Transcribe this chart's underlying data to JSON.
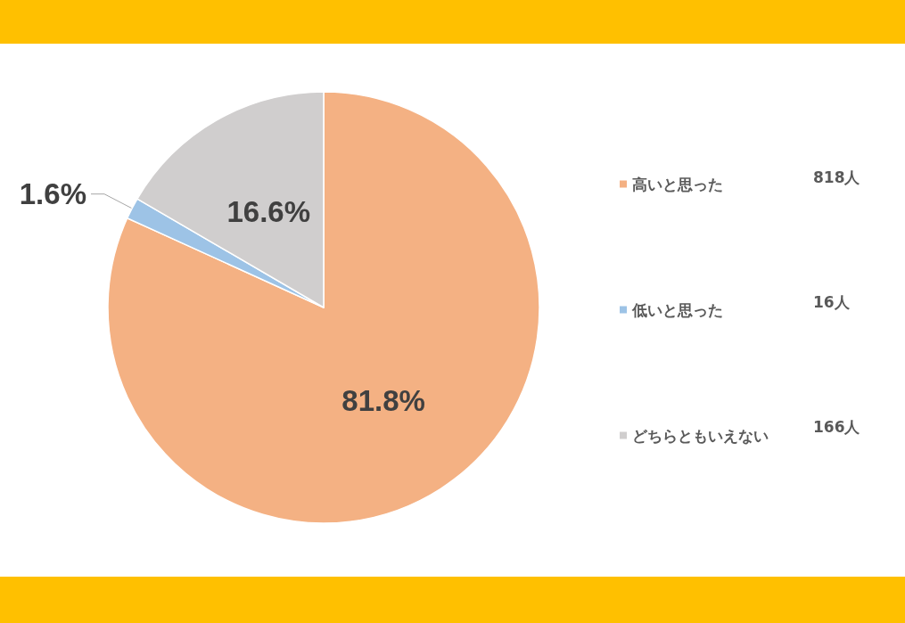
{
  "chart_data": {
    "type": "pie",
    "categories": [
      "高いと思った",
      "低いと思った",
      "どちらともいえない"
    ],
    "values": [
      81.8,
      1.6,
      16.6
    ],
    "colors": [
      "#f4b183",
      "#9dc3e6",
      "#d0cece"
    ],
    "value_labels": [
      "81.8%",
      "1.6%",
      "16.6%"
    ],
    "annotations": [
      "818人",
      "16人",
      "166人"
    ],
    "legend": "right"
  }
}
